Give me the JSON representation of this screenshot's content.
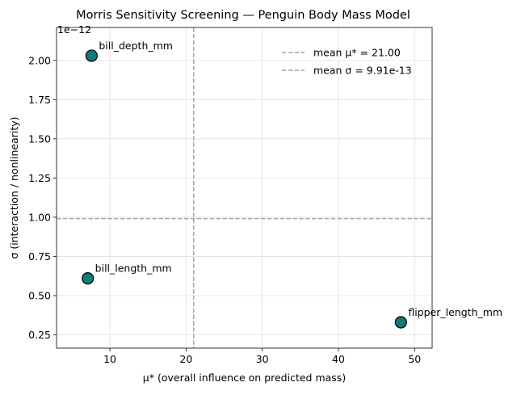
{
  "chart_data": {
    "type": "scatter",
    "title": "Morris Sensitivity Screening — Penguin Body Mass Model",
    "xlabel": "μ* (overall influence on predicted mass)",
    "ylabel": "σ (interaction / nonlinearity)",
    "y_offset_label": "1e−12",
    "xlim": [
      3.0,
      52.3
    ],
    "ylim": [
      0.165,
      2.21
    ],
    "x_ticks": [
      {
        "value": 10,
        "label": "10"
      },
      {
        "value": 20,
        "label": "20"
      },
      {
        "value": 30,
        "label": "30"
      },
      {
        "value": 40,
        "label": "40"
      },
      {
        "value": 50,
        "label": "50"
      }
    ],
    "y_ticks": [
      {
        "value": 0.25,
        "label": "0.25"
      },
      {
        "value": 0.5,
        "label": "0.50"
      },
      {
        "value": 0.75,
        "label": "0.75"
      },
      {
        "value": 1.0,
        "label": "1.00"
      },
      {
        "value": 1.25,
        "label": "1.25"
      },
      {
        "value": 1.5,
        "label": "1.50"
      },
      {
        "value": 1.75,
        "label": "1.75"
      },
      {
        "value": 2.0,
        "label": "2.00"
      }
    ],
    "points": [
      {
        "label": "bill_depth_mm",
        "x": 7.6,
        "y": 2.03
      },
      {
        "label": "bill_length_mm",
        "x": 7.1,
        "y": 0.61
      },
      {
        "label": "flipper_length_mm",
        "x": 48.2,
        "y": 0.33
      }
    ],
    "mean_mu_star": 21.0,
    "mean_sigma": 0.991,
    "legend": [
      {
        "label": "mean μ* = 21.00"
      },
      {
        "label": "mean σ = 9.91e-13"
      }
    ],
    "legend_position": "top-right",
    "grid": true,
    "colors": {
      "point_fill": "#0f7a76",
      "point_edge": "#000000",
      "mean_line": "#a6a6a6",
      "grid": "#e0e0e0"
    }
  }
}
